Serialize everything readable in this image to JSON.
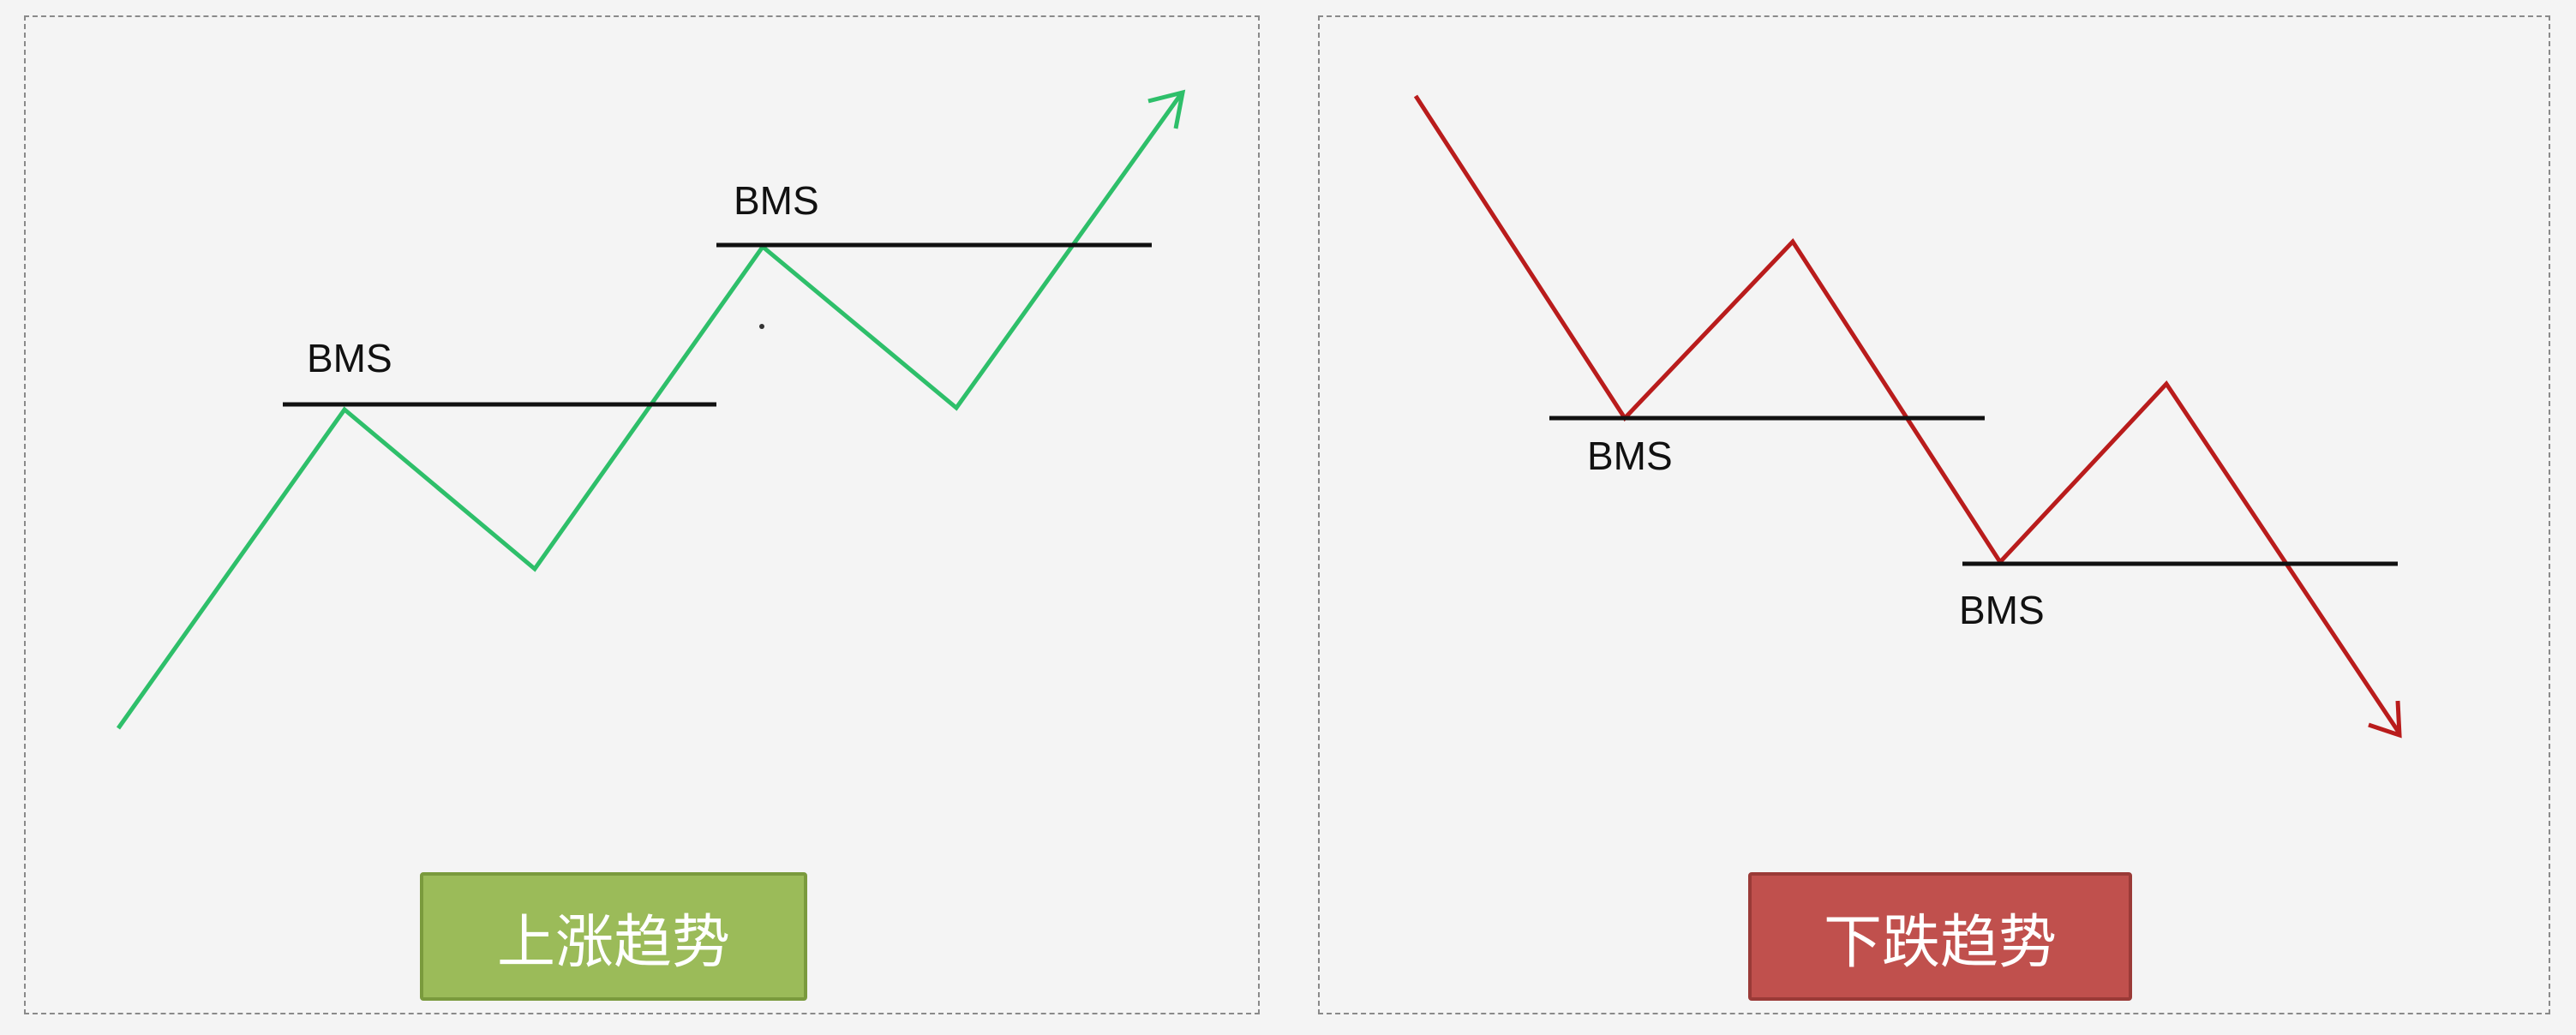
{
  "uptrend": {
    "title": "上涨趋势",
    "line_color": "#2ebf6a",
    "button_color": "#9bbb59",
    "bms_labels": [
      "BMS",
      "BMS"
    ]
  },
  "downtrend": {
    "title": "下跌趋势",
    "line_color": "#b91c1c",
    "button_color": "#c0504d",
    "bms_labels": [
      "BMS",
      "BMS"
    ]
  },
  "bms_line_color": "#111111"
}
